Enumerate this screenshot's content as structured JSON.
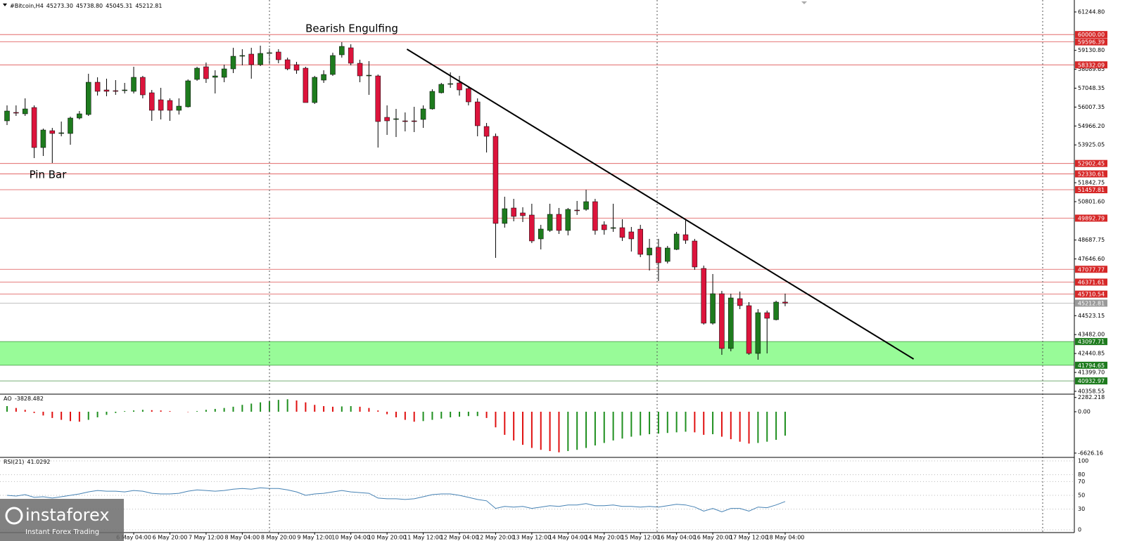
{
  "header": {
    "symbol": "#Bitcoin,H4",
    "ohlc": [
      "45273.30",
      "45738.80",
      "45045.31",
      "45212.81"
    ]
  },
  "logo": {
    "name": "instaforex",
    "tagline": "Instant Forex Trading"
  },
  "chart_data": [
    {
      "type": "candlestick",
      "categories": [
        null,
        null,
        null,
        null,
        null,
        null,
        null,
        null,
        null,
        null,
        null,
        null,
        null,
        null,
        "6 May 04:00",
        null,
        null,
        null,
        "6 May 20:00",
        null,
        null,
        null,
        "7 May 12:00",
        null,
        null,
        null,
        "8 May 04:00",
        null,
        null,
        null,
        "8 May 20:00",
        null,
        null,
        null,
        "9 May 12:00",
        null,
        null,
        null,
        "10 May 04:00",
        null,
        null,
        null,
        "10 May 20:00",
        null,
        null,
        null,
        "11 May 12:00",
        null,
        null,
        null,
        "12 May 04:00",
        null,
        null,
        null,
        "12 May 20:00",
        null,
        null,
        null,
        "13 May 12:00",
        null,
        null,
        null,
        "14 May 04:00",
        null,
        null,
        null,
        "14 May 20:00",
        null,
        null,
        null,
        "15 May 12:00",
        null,
        null,
        null,
        "16 May 04:00",
        null,
        null,
        null,
        "16 May 20:00",
        null,
        null,
        null,
        "17 May 12:00",
        null,
        null,
        null,
        "18 May 04:00"
      ],
      "open": [
        55249,
        55713,
        55636,
        55984,
        53779,
        54708,
        54553,
        54553,
        55404,
        55597,
        57376,
        56951,
        56912,
        56912,
        56874,
        57647,
        56796,
        56409,
        56371,
        55829,
        56023,
        57531,
        58227,
        57647,
        57647,
        58111,
        58808,
        58924,
        58343,
        58963,
        59040,
        58614,
        58343,
        58150,
        56255,
        57492,
        57802,
        58885,
        59272,
        58421,
        57724,
        57724,
        55443,
        55326,
        55249,
        55249,
        55326,
        55907,
        56796,
        57261,
        57338,
        57028,
        56293,
        54940,
        54398,
        49602,
        50453,
        50182,
        50066,
        48751,
        49215,
        50105,
        49215,
        50337,
        50376,
        50801,
        49526,
        49331,
        49370,
        49138,
        49288,
        47862,
        48287,
        47512,
        48171,
        48983,
        48635,
        47126,
        44109,
        45734,
        42717,
        45463,
        45076,
        42446,
        44689,
        44303,
        45273.3
      ],
      "high": [
        56100,
        56100,
        56487,
        56100,
        54824,
        54862,
        55210,
        55481,
        55791,
        57841,
        57647,
        57570,
        57493,
        57338,
        58227,
        57724,
        56951,
        57067,
        56487,
        56487,
        57531,
        58227,
        58459,
        58034,
        58343,
        59272,
        59194,
        59272,
        59388,
        59233,
        59194,
        58730,
        58498,
        58227,
        57724,
        58034,
        59001,
        59581,
        59465,
        58614,
        58537,
        57802,
        56100,
        55907,
        55713,
        56023,
        56100,
        56990,
        57338,
        57918,
        57724,
        57106,
        56487,
        55133,
        54553,
        51072,
        50956,
        50492,
        50685,
        49524,
        50685,
        50453,
        50453,
        50840,
        51458,
        50956,
        49718,
        50685,
        49834,
        49408,
        49524,
        48751,
        48751,
        48364,
        49138,
        49834,
        48751,
        47281,
        46817,
        45887,
        45734,
        45850,
        45270,
        44883,
        44805,
        45347,
        45738.8
      ],
      "low": [
        55017,
        55520,
        55520,
        53199,
        53315,
        52928,
        54398,
        53934,
        55326,
        55520,
        56642,
        56603,
        56680,
        56757,
        56757,
        56487,
        55249,
        55326,
        55249,
        55597,
        55984,
        57454,
        57338,
        56757,
        57376,
        57879,
        58305,
        57570,
        58266,
        58421,
        58421,
        58034,
        57840,
        56255,
        56178,
        57338,
        57724,
        58730,
        58305,
        57376,
        56680,
        53779,
        54475,
        54359,
        54669,
        54630,
        54862,
        55868,
        56757,
        57067,
        56642,
        56100,
        54398,
        53508,
        47706,
        49370,
        49718,
        49679,
        48519,
        48171,
        49138,
        49022,
        48944,
        50066,
        50298,
        48983,
        48983,
        49138,
        48636,
        48055,
        47745,
        47010,
        46430,
        47397,
        48132,
        48480,
        47049,
        44032,
        44032,
        42369,
        42562,
        44883,
        42369,
        42098,
        42446,
        44264,
        45045.31
      ],
      "close": [
        55791,
        55674,
        55907,
        53779,
        54746,
        54553,
        54592,
        55404,
        55636,
        57376,
        56874,
        56874,
        56874,
        56951,
        57647,
        56680,
        55829,
        55829,
        55829,
        56061,
        57454,
        58150,
        57570,
        57724,
        58111,
        58808,
        58847,
        58343,
        58963,
        59001,
        58614,
        58111,
        58034,
        56255,
        57647,
        57802,
        58847,
        59349,
        58421,
        57724,
        57763,
        55210,
        55249,
        55365,
        55210,
        55210,
        55907,
        56874,
        57261,
        57299,
        56951,
        56293,
        54979,
        54398,
        49602,
        50414,
        49989,
        50027,
        48636,
        49293,
        50105,
        49215,
        50376,
        50298,
        50801,
        49215,
        49254,
        49370,
        48830,
        48751,
        47900,
        48248,
        47435,
        48248,
        49022,
        48673,
        47204,
        44109,
        45734,
        42717,
        45502,
        45076,
        42446,
        44689,
        44380,
        45270,
        45212.81
      ],
      "up_color": "#1e7b1e",
      "down_color": "#dc143c",
      "ylim": [
        40164,
        61593
      ],
      "yticks": [
        {
          "value": 61244.8,
          "label": "61244.80"
        },
        {
          "value": 59130.8,
          "label": "59130.80"
        },
        {
          "value": 58089.65,
          "label": "58089.65"
        },
        {
          "value": 57048.35,
          "label": "57048.35"
        },
        {
          "value": 56007.35,
          "label": "56007.35"
        },
        {
          "value": 54966.2,
          "label": "54966.20"
        },
        {
          "value": 53925.05,
          "label": "53925.05"
        },
        {
          "value": 51842.75,
          "label": "51842.75"
        },
        {
          "value": 50801.6,
          "label": "50801.60"
        },
        48687.75,
        {
          "value": 47646.6,
          "label": "47646.60"
        },
        44523.15,
        {
          "value": 43482,
          "label": "43482.00"
        },
        42440.85,
        {
          "value": 41399.7,
          "label": "41399.70"
        },
        40358.55
      ],
      "levels": [
        {
          "value": 60000,
          "label": "60000.00",
          "color": "#d62828"
        },
        {
          "value": 59596.39,
          "label": "59596.39",
          "color": "#d62828"
        },
        {
          "value": 58332.09,
          "label": "58332.09",
          "color": "#d62828"
        },
        {
          "value": 52902.45,
          "label": "52902.45",
          "color": "#d62828"
        },
        {
          "value": 52330.61,
          "label": "52330.61",
          "color": "#d62828"
        },
        {
          "value": 51457.81,
          "label": "51457.81",
          "color": "#d62828"
        },
        {
          "value": 49892.79,
          "label": "49892.79",
          "color": "#d62828"
        },
        {
          "value": 47077.77,
          "label": "47077.77",
          "color": "#d62828"
        },
        {
          "value": 46371.61,
          "label": "46371.61",
          "color": "#d62828"
        },
        {
          "value": 45710.54,
          "label": "45710.54",
          "color": "#d62828"
        },
        {
          "value": 45212.81,
          "label": "45212.81",
          "color": "#9a9a9a"
        },
        {
          "value": 43097.71,
          "label": "43097.71",
          "color": "#1e7b1e"
        },
        {
          "value": 41794.65,
          "label": "41794.65",
          "color": "#1e7b1e"
        },
        {
          "value": 40932.97,
          "label": "40932.97",
          "color": "#1e7b1e"
        }
      ],
      "zone": [
        41794.65,
        43097.71
      ],
      "zone_color": "#98fb98",
      "trendline": {
        "x": [
          44.2,
          100.2
        ],
        "values": [
          59194,
          42137
        ],
        "color": "#000000"
      },
      "annotations": [
        "Bearish Engulfing",
        "Pin Bar"
      ]
    },
    {
      "type": "histogram",
      "name": "AO",
      "values": [
        900,
        600,
        300,
        -200,
        -600,
        -1000,
        -1300,
        -1500,
        -1600,
        -1300,
        -900,
        -500,
        -200,
        100,
        200,
        300,
        250,
        200,
        100,
        0,
        -50,
        100,
        300,
        450,
        600,
        800,
        1100,
        1300,
        1500,
        1700,
        1900,
        2000,
        1800,
        1500,
        1100,
        900,
        800,
        850,
        900,
        800,
        600,
        200,
        -400,
        -900,
        -1300,
        -1600,
        -1500,
        -1300,
        -1100,
        -900,
        -800,
        -700,
        -700,
        -1000,
        -2500,
        -3700,
        -4600,
        -5300,
        -5800,
        -6100,
        -6300,
        -6500,
        -6300,
        -6100,
        -5800,
        -5400,
        -5000,
        -4600,
        -4300,
        -4000,
        -3800,
        -3600,
        -3500,
        -3400,
        -3300,
        -3200,
        -3300,
        -3700,
        -3600,
        -4000,
        -4400,
        -4800,
        -5100,
        -5000,
        -4800,
        -4500,
        -3828.482
      ],
      "up_color": "#1f8f1f",
      "down_color": "#e01010",
      "ylim": [
        -7200,
        2700
      ],
      "yticks": [
        2282.218,
        {
          "value": 0,
          "label": "0.00"
        },
        -6626.16
      ]
    },
    {
      "type": "line",
      "name": "RSI(21)",
      "values": [
        50,
        49,
        51,
        47,
        48,
        46,
        48,
        50,
        52,
        55,
        57,
        56,
        56,
        55,
        57,
        56,
        53,
        52,
        52,
        53,
        56,
        58,
        57,
        56,
        57,
        59,
        60,
        59,
        61,
        60,
        60,
        58,
        55,
        50,
        52,
        53,
        55,
        57,
        55,
        54,
        53,
        46,
        45,
        45,
        44,
        45,
        48,
        51,
        52,
        52,
        50,
        47,
        44,
        42,
        31,
        34,
        33,
        34,
        31,
        33,
        35,
        34,
        36,
        36,
        38,
        35,
        35,
        36,
        34,
        34,
        33,
        34,
        33,
        35,
        37,
        36,
        33,
        27,
        31,
        26,
        31,
        31,
        27,
        33,
        32,
        36,
        41.0292
      ],
      "color": "#4682b4",
      "ylim": [
        0,
        100
      ],
      "yticks": [
        100,
        80,
        70,
        50,
        30,
        0
      ],
      "grid": true
    }
  ]
}
